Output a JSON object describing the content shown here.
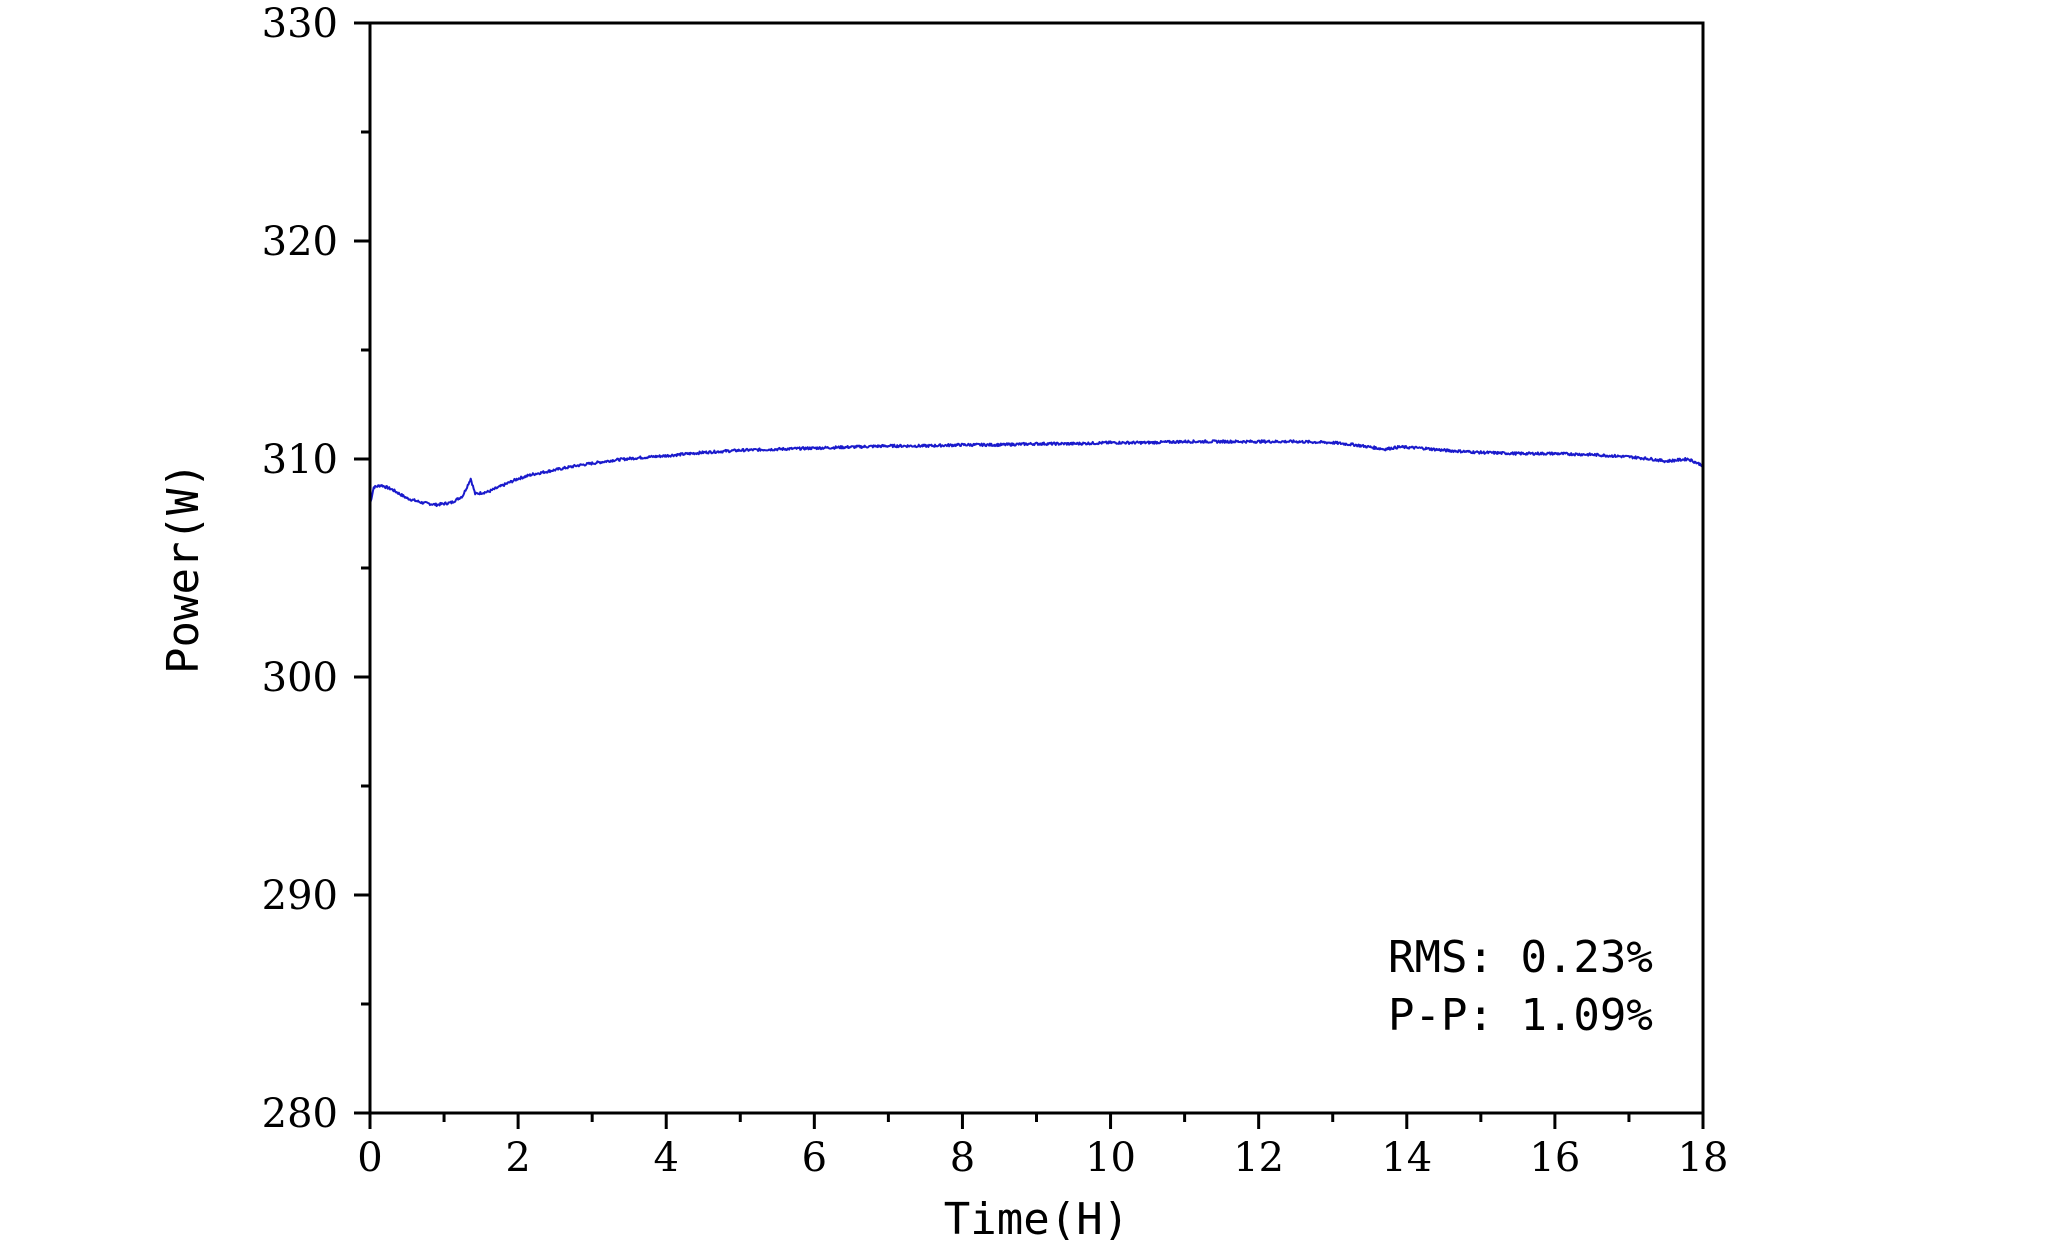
{
  "chart_data": {
    "type": "line",
    "title": "",
    "xlabel": "Time(H)",
    "ylabel": "Power(W)",
    "xlim": [
      0,
      18
    ],
    "ylim": [
      280,
      330
    ],
    "x_ticks": [
      0,
      2,
      4,
      6,
      8,
      10,
      12,
      14,
      16,
      18
    ],
    "y_ticks": [
      280,
      290,
      300,
      310,
      320,
      330
    ],
    "grid": false,
    "line_color": "#1a1acc",
    "series": [
      {
        "name": "",
        "x": [
          0,
          0.05,
          0.15,
          0.3,
          0.5,
          0.7,
          0.9,
          1.1,
          1.25,
          1.32,
          1.36,
          1.42,
          1.6,
          1.8,
          2.0,
          2.2,
          2.5,
          2.8,
          3.0,
          3.3,
          3.6,
          4.0,
          4.5,
          5.0,
          5.5,
          6.0,
          6.5,
          7.0,
          7.5,
          8.0,
          8.5,
          9.0,
          9.5,
          10.0,
          10.5,
          11.0,
          11.5,
          12.0,
          12.5,
          13.0,
          13.3,
          13.6,
          13.7,
          13.9,
          14.2,
          14.5,
          15.0,
          15.5,
          16.0,
          16.5,
          17.0,
          17.3,
          17.5,
          17.8,
          18.0
        ],
        "values": [
          307.9,
          308.7,
          308.8,
          308.6,
          308.2,
          308.0,
          307.9,
          308.0,
          308.3,
          308.8,
          309.1,
          308.4,
          308.5,
          308.8,
          309.1,
          309.3,
          309.5,
          309.7,
          309.8,
          309.95,
          310.05,
          310.15,
          310.3,
          310.4,
          310.45,
          310.5,
          310.55,
          310.6,
          310.6,
          310.65,
          310.65,
          310.7,
          310.7,
          310.75,
          310.75,
          310.8,
          310.8,
          310.8,
          310.8,
          310.75,
          310.65,
          310.5,
          310.45,
          310.55,
          310.5,
          310.4,
          310.3,
          310.25,
          310.25,
          310.2,
          310.1,
          310.0,
          309.9,
          310.0,
          309.7
        ]
      }
    ],
    "annotations": [
      "RMS: 0.23%",
      "P-P: 1.09%"
    ]
  }
}
